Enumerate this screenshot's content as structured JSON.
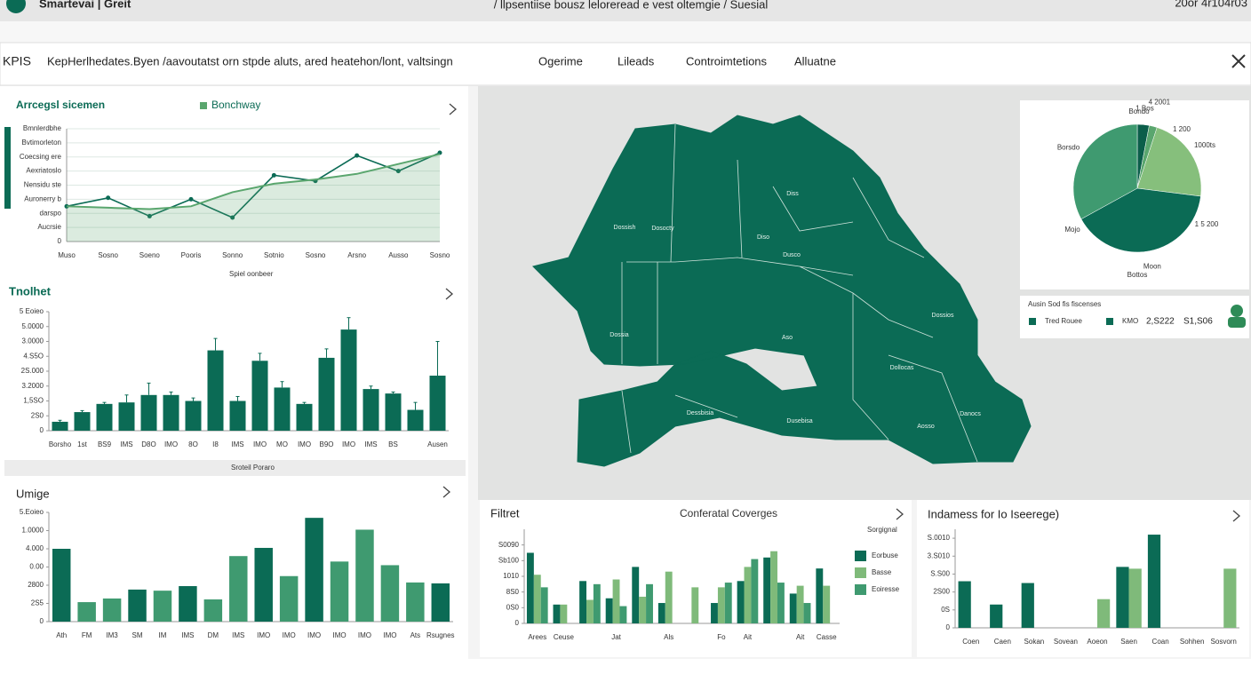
{
  "header": {
    "app": "Smartevai | Greit",
    "breadcrumb": "/ llpsentiise bousz leloreread e vest oltemgie / Suesial",
    "meta": "20or 4r104r03"
  },
  "nav": {
    "title": "KPIS",
    "description": "KepHerlhedates.Byen /aavoutatst orn stpde aluts, ared heatehon/lont, valtsingn",
    "tabs": [
      "Ogerime",
      "Lileads",
      "Controimtetions",
      "Alluatne"
    ]
  },
  "chart_data": [
    {
      "type": "line",
      "title": "Arrcegsl sicemen",
      "subtitle": "Spiel oonbeer",
      "categories": [
        "Muso",
        "Sosno",
        "Soeno",
        "Pooris",
        "Sonno",
        "Sotnio",
        "Sosno",
        "Arsno",
        "Ausso",
        "Sosno"
      ],
      "series": [
        {
          "color": "#0b6b55",
          "values": [
            2.5,
            3.1,
            1.8,
            3.0,
            1.7,
            4.7,
            4.3,
            6.1,
            5.0,
            6.3
          ]
        },
        {
          "name": "Bonchway",
          "color": "#5aa66e",
          "area": true,
          "values": [
            2.5,
            2.4,
            2.3,
            2.5,
            3.5,
            4.1,
            4.4,
            4.8,
            5.5,
            6.2
          ]
        }
      ],
      "ylim": [
        0,
        8
      ],
      "yticks": [
        0,
        {
          "value": 1,
          "label": "Aucrsie"
        },
        {
          "value": 2,
          "label": "darspo"
        },
        {
          "value": 3,
          "label": "Auronerry b"
        },
        {
          "value": 4,
          "label": "Nensidu ste"
        },
        {
          "value": 5,
          "label": "Aexriatoslo"
        },
        {
          "value": 6,
          "label": "Coecsing ere"
        },
        {
          "value": 7,
          "label": "Bvtimorleton"
        },
        {
          "value": 8,
          "label": "Bmnlerdbhe"
        }
      ],
      "grid": true
    },
    {
      "type": "bar",
      "title": "Tnolhet",
      "subtitle": "Sroteil Poraro",
      "color": "#0b6b55",
      "categories": [
        "Borsho",
        "1st",
        "BS9",
        "IMS",
        "D8O",
        "IMO",
        "8O",
        "I8",
        "IMS",
        "IMO",
        "MO",
        "IMO",
        "B9O",
        "IMO",
        "IMS",
        "BS",
        null,
        "Ausen"
      ],
      "values": [
        0.6,
        1.25,
        1.8,
        1.9,
        2.4,
        2.4,
        2.0,
        5.4,
        2.0,
        4.7,
        2.9,
        1.8,
        4.9,
        6.8,
        2.8,
        2.5,
        1.4,
        3.7
      ],
      "errors": [
        0.1,
        0.1,
        0.1,
        0.5,
        0.8,
        0.2,
        0.2,
        0.8,
        0.3,
        0.5,
        0.4,
        0.1,
        0.6,
        0.8,
        0.2,
        0.1,
        0.5,
        2.3
      ],
      "ylim": [
        0,
        8
      ],
      "yticks": [
        0,
        {
          "value": 1,
          "label": "2S0"
        },
        {
          "value": 2,
          "label": "1,5SO"
        },
        {
          "value": 3,
          "label": "3.2000"
        },
        {
          "value": 4,
          "label": "2S.000"
        },
        {
          "value": 5,
          "label": "4.S5O"
        },
        {
          "value": 6,
          "label": "3.0000"
        },
        {
          "value": 7,
          "label": "5.0000"
        },
        {
          "value": 8,
          "label": "5 Eoieo"
        }
      ]
    },
    {
      "type": "bar",
      "title": "Umige",
      "categories": [
        "Ath",
        "FM",
        "IM3",
        "SM",
        "IM",
        "IMS",
        "DM",
        "IMS",
        "IMO",
        "IMO",
        "IMO",
        "IMO",
        "IMO",
        "IMO",
        "Ats",
        "Rsugnes"
      ],
      "values": [
        4.0,
        1.07,
        1.27,
        1.76,
        1.7,
        1.95,
        1.22,
        3.6,
        4.05,
        2.5,
        5.7,
        3.3,
        5.05,
        3.1,
        2.15,
        2.1
      ],
      "colors": [
        "#0b6b55",
        "#3f9a70",
        "#3f9a70",
        "#0b6b55",
        "#3f9a70",
        "#0b6b55",
        "#3f9a70",
        "#3f9a70",
        "#0b6b55",
        "#3f9a70",
        "#0b6b55",
        "#3f9a70",
        "#3f9a70",
        "#3f9a70",
        "#3f9a70",
        "#0b6b55"
      ],
      "ylim": [
        0,
        6
      ],
      "yticks": [
        0,
        {
          "value": 1,
          "label": "2S5"
        },
        {
          "value": 2,
          "label": "2800"
        },
        {
          "value": 3,
          "label": "0.00"
        },
        {
          "value": 4,
          "label": "4.000"
        },
        {
          "value": 5,
          "label": "1.0000"
        },
        {
          "value": 6,
          "label": "5.Eoieo"
        }
      ]
    },
    {
      "type": "pie",
      "title": "Bondo",
      "categories": [
        "1 Bos",
        "4 2001",
        "1000ts",
        "Moon",
        "Borsdo"
      ],
      "values": [
        3,
        2,
        22,
        40,
        33
      ],
      "colors": [
        "#0b5e4a",
        "#5aa66e",
        "#86bf7c",
        "#0b6b55",
        "#3f9a70"
      ],
      "annotations": [
        "1 200",
        "1 5 200",
        "Mojo",
        "Bottos"
      ]
    },
    {
      "type": "grouped_bar",
      "title": "Filtret",
      "subtitle": "Conferatal Coverges",
      "legend_title": "Sorgignal",
      "categories": [
        "Arees",
        "Ceuse",
        null,
        "Jat",
        null,
        "Als",
        null,
        "Fo",
        "Ait",
        null,
        "Ait",
        "Casse"
      ],
      "series": [
        {
          "name": "Eorbuse",
          "color": "#0b6b55",
          "values": [
            4.5,
            1.2,
            2.7,
            1.6,
            3.6,
            1.3,
            null,
            1.3,
            2.7,
            4.2,
            1.9,
            3.5
          ]
        },
        {
          "name": "Basse",
          "color": "#7fba7a",
          "values": [
            3.1,
            1.2,
            1.5,
            2.8,
            1.7,
            3.3,
            2.3,
            2.3,
            3.6,
            4.6,
            2.4,
            2.4
          ]
        },
        {
          "name": "Eoiresse",
          "color": "#3f9a70",
          "values": [
            2.3,
            null,
            2.5,
            1.1,
            2.5,
            null,
            null,
            2.6,
            4.1,
            2.6,
            1.3,
            null
          ]
        }
      ],
      "ylim": [
        0,
        6
      ],
      "yticks": [
        0,
        {
          "value": 1,
          "label": "0S0"
        },
        {
          "value": 2,
          "label": "8S0"
        },
        {
          "value": 3,
          "label": "1010"
        },
        {
          "value": 4,
          "label": "Sb100"
        },
        {
          "value": 5,
          "label": "S0090"
        }
      ]
    },
    {
      "type": "grouped_bar",
      "title": "Indamess for Io Iseerege)",
      "categories": [
        "Coen",
        "Caen",
        "Sokan",
        "Sovean",
        "Aoeon",
        "Saen",
        "Coan",
        "Sohhen",
        "Sosvorn"
      ],
      "series": [
        {
          "color": "#0b6b55",
          "values": [
            2.6,
            1.3,
            2.5,
            null,
            null,
            3.4,
            5.2,
            null,
            null
          ]
        },
        {
          "color": "#7fba7a",
          "values": [
            null,
            null,
            null,
            null,
            1.6,
            3.3,
            null,
            null,
            3.3
          ]
        }
      ],
      "ylim": [
        0,
        5.5
      ],
      "yticks": [
        0,
        {
          "value": 1,
          "label": "0S"
        },
        {
          "value": 2,
          "label": "2S00"
        },
        {
          "value": 3,
          "label": "S.S00"
        },
        {
          "value": 4,
          "label": "3.S010"
        },
        {
          "value": 5,
          "label": "S.0010"
        }
      ]
    }
  ],
  "map": {
    "labels": [
      "Dossish",
      "Dosocty",
      "Diso",
      "Dusco",
      "Diss",
      "Aso",
      "Dossia",
      "Dossios",
      "Dollocas",
      "Dessbisia",
      "Dusebisa",
      "Danocs",
      "Aosso"
    ]
  },
  "legend_box": {
    "title": "Ausin Sod fis fiscenses",
    "items": [
      "Tred Rouee",
      "KMO"
    ],
    "values": [
      "2,S222",
      "S1,S06"
    ]
  }
}
